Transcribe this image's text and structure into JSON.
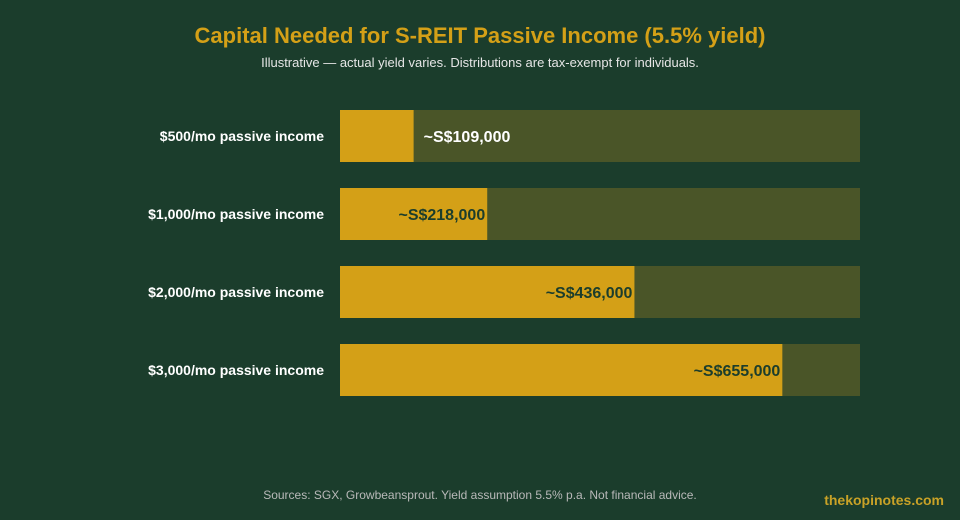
{
  "title": "Capital Needed for S-REIT Passive Income (5.5% yield)",
  "subtitle": "Illustrative — actual yield varies. Distributions are tax-exempt for individuals.",
  "source": "Sources: SGX, Growbeansprout. Yield assumption 5.5% p.a. Not financial advice.",
  "brand": "thekopinotes.com",
  "colors": {
    "background": "#1b3d2c",
    "bar_fill": "#d4a017",
    "bar_track": "#4a5528",
    "label_inside_dark": "#1b3d2c",
    "label_light": "#ffffff",
    "title": "#d4a017"
  },
  "chart_data": {
    "type": "bar",
    "orientation": "horizontal",
    "categories": [
      "$500/mo passive income",
      "$1,000/mo passive income",
      "$2,000/mo passive income",
      "$3,000/mo passive income"
    ],
    "values": [
      109000,
      218000,
      436000,
      655000
    ],
    "data_labels": [
      "~S$109,000",
      "~S$218,000",
      "~S$436,000",
      "~S$655,000"
    ],
    "xlim": [
      0,
      770000
    ],
    "grid": false,
    "legend": "none"
  }
}
